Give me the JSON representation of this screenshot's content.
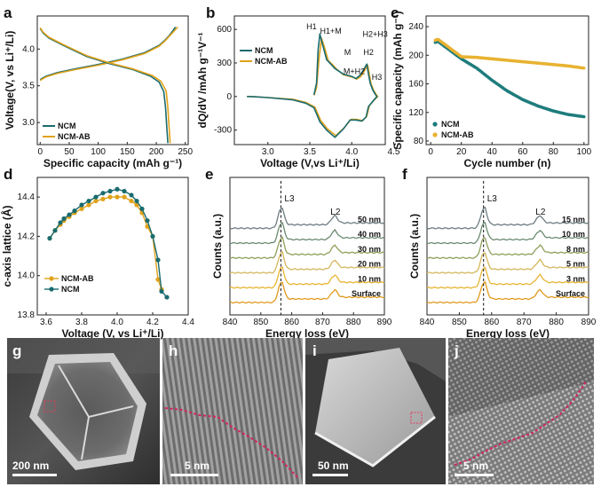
{
  "panels": {
    "g": {
      "letter": "g",
      "scale_label": "200 nm"
    },
    "h": {
      "letter": "h",
      "scale_label": "5 nm"
    },
    "i": {
      "letter": "i",
      "scale_label": "50 nm"
    },
    "j": {
      "letter": "j",
      "scale_label": "5 nm"
    }
  },
  "colors": {
    "ncm": "#1a6b6e",
    "ncm_ab": "#e0a21b",
    "ncm_dot": "#1e7c7c",
    "ncm_ab_dot": "#e8b230",
    "tem_dash": "#d6245a"
  },
  "chart_data": [
    {
      "id": "a",
      "type": "line",
      "letter": "a",
      "xlabel": "Specific capacity (mAh g⁻¹)",
      "ylabel": "Voltage(V, vs Li⁺/Li)",
      "xlim": [
        -5,
        255
      ],
      "ylim": [
        2.7,
        4.45
      ],
      "xticks": [
        0,
        50,
        100,
        150,
        200,
        250
      ],
      "yticks": [
        3.0,
        3.5,
        4.0
      ],
      "legend": [
        "NCM",
        "NCM-AB"
      ],
      "series": [
        {
          "name": "NCM charge",
          "x": [
            0,
            3,
            10,
            30,
            60,
            100,
            140,
            180,
            205,
            215,
            222,
            228,
            233
          ],
          "y": [
            3.58,
            3.6,
            3.63,
            3.68,
            3.73,
            3.79,
            3.86,
            3.95,
            4.05,
            4.12,
            4.18,
            4.24,
            4.3
          ]
        },
        {
          "name": "NCM-AB charge",
          "x": [
            0,
            3,
            10,
            30,
            60,
            100,
            140,
            180,
            205,
            215,
            223,
            230,
            237
          ],
          "y": [
            3.57,
            3.59,
            3.62,
            3.67,
            3.72,
            3.78,
            3.85,
            3.94,
            4.04,
            4.11,
            4.18,
            4.24,
            4.3
          ]
        },
        {
          "name": "NCM discharge",
          "x": [
            0,
            5,
            15,
            40,
            80,
            120,
            160,
            190,
            205,
            213,
            216,
            218,
            220
          ],
          "y": [
            4.28,
            4.22,
            4.15,
            4.05,
            3.9,
            3.8,
            3.72,
            3.63,
            3.55,
            3.42,
            3.2,
            2.95,
            2.72
          ]
        },
        {
          "name": "NCM-AB discharge",
          "x": [
            0,
            5,
            15,
            40,
            80,
            120,
            160,
            193,
            208,
            217,
            220,
            222,
            224
          ],
          "y": [
            4.29,
            4.23,
            4.16,
            4.06,
            3.91,
            3.81,
            3.73,
            3.64,
            3.56,
            3.43,
            3.2,
            2.95,
            2.72
          ]
        }
      ]
    },
    {
      "id": "b",
      "type": "line",
      "letter": "b",
      "xlabel": "Voltage (V,vs Li⁺/Li)",
      "ylabel": "dQ/dV /mAh g⁻¹V⁻¹",
      "xlim": [
        2.6,
        4.4
      ],
      "ylim": [
        -430,
        720
      ],
      "xticks": [
        3.0,
        3.5,
        4.0,
        4.5
      ],
      "yticks": [
        -300,
        0,
        300,
        600
      ],
      "legend": [
        "NCM",
        "NCM-AB"
      ],
      "annotations": [
        "H1",
        "H1+M",
        "M",
        "H2+H3",
        "H2",
        "M+H2",
        "H3"
      ],
      "series": [
        {
          "name": "NCM",
          "x": [
            3.55,
            3.58,
            3.6,
            3.62,
            3.65,
            3.7,
            3.75,
            3.8,
            3.9,
            4.0,
            4.05,
            4.1,
            4.15,
            4.18,
            4.2,
            4.22,
            4.25,
            4.28,
            4.3,
            4.3,
            4.26,
            4.2,
            4.17,
            4.12,
            4.05,
            3.98,
            3.9,
            3.8,
            3.7,
            3.62,
            3.55,
            3.45,
            3.3,
            3.0,
            2.8,
            2.75
          ],
          "y": [
            15,
            120,
            420,
            560,
            470,
            330,
            290,
            250,
            200,
            180,
            160,
            190,
            250,
            290,
            200,
            120,
            60,
            20,
            0,
            0,
            -35,
            -90,
            -185,
            -220,
            -210,
            -210,
            -290,
            -365,
            -300,
            -225,
            -100,
            -60,
            -30,
            -10,
            0,
            0
          ]
        },
        {
          "name": "NCM-AB",
          "x": [
            3.55,
            3.58,
            3.61,
            3.64,
            3.67,
            3.72,
            3.77,
            3.82,
            3.9,
            4.0,
            4.06,
            4.11,
            4.16,
            4.19,
            4.21,
            4.23,
            4.26,
            4.29,
            4.31,
            4.31,
            4.27,
            4.21,
            4.18,
            4.13,
            4.06,
            3.99,
            3.91,
            3.81,
            3.71,
            3.63,
            3.56,
            3.46,
            3.3,
            3.0,
            2.8,
            2.75
          ],
          "y": [
            10,
            80,
            340,
            520,
            450,
            320,
            285,
            245,
            195,
            175,
            155,
            180,
            240,
            280,
            195,
            115,
            55,
            20,
            0,
            0,
            -30,
            -80,
            -175,
            -215,
            -205,
            -205,
            -280,
            -350,
            -290,
            -215,
            -95,
            -55,
            -25,
            -10,
            0,
            0
          ]
        }
      ]
    },
    {
      "id": "c",
      "type": "scatter",
      "letter": "c",
      "xlabel": "Cycle number (n)",
      "ylabel": "Specific capacity (mAh g⁻¹)",
      "xlim": [
        -3,
        103
      ],
      "ylim": [
        75,
        255
      ],
      "xticks": [
        0,
        20,
        40,
        60,
        80,
        100
      ],
      "yticks": [
        80,
        120,
        160,
        200,
        240
      ],
      "legend": [
        "NCM",
        "NCM-AB"
      ],
      "series": [
        {
          "name": "NCM",
          "x": [
            3,
            4,
            5,
            20,
            30,
            40,
            50,
            60,
            70,
            80,
            90,
            100
          ],
          "y": [
            218,
            219,
            219,
            195,
            182,
            165,
            150,
            138,
            129,
            122,
            117,
            114
          ]
        },
        {
          "name": "NCM-AB",
          "x": [
            3,
            4,
            5,
            20,
            30,
            40,
            50,
            60,
            70,
            80,
            90,
            100
          ],
          "y": [
            221,
            222,
            222,
            198,
            197,
            195,
            193,
            191,
            189,
            187,
            185,
            182
          ]
        }
      ]
    },
    {
      "id": "d",
      "type": "line",
      "letter": "d",
      "xlabel": "Voltage (V, vs Li⁺/Li)",
      "ylabel": "c-axis lattice (Å)",
      "xlim": [
        3.55,
        4.4
      ],
      "ylim": [
        13.8,
        14.5
      ],
      "xticks": [
        3.6,
        3.8,
        4.0,
        4.2,
        4.4
      ],
      "yticks": [
        13.8,
        14.0,
        14.2,
        14.4
      ],
      "legend": [
        "NCM-AB",
        "NCM"
      ],
      "series": [
        {
          "name": "NCM-AB",
          "x": [
            3.62,
            3.65,
            3.68,
            3.7,
            3.73,
            3.76,
            3.8,
            3.84,
            3.88,
            3.92,
            3.96,
            4.0,
            4.04,
            4.08,
            4.11,
            4.14,
            4.17,
            4.2,
            4.23,
            4.25
          ],
          "y": [
            14.19,
            14.23,
            14.26,
            14.28,
            14.3,
            14.32,
            14.34,
            14.36,
            14.38,
            14.39,
            14.4,
            14.4,
            14.4,
            14.38,
            14.36,
            14.32,
            14.25,
            14.2,
            13.98,
            13.93
          ]
        },
        {
          "name": "NCM",
          "x": [
            3.62,
            3.65,
            3.68,
            3.7,
            3.73,
            3.76,
            3.8,
            3.84,
            3.88,
            3.92,
            3.96,
            4.0,
            4.04,
            4.08,
            4.11,
            4.14,
            4.17,
            4.2,
            4.23,
            4.25,
            4.28
          ],
          "y": [
            14.19,
            14.23,
            14.27,
            14.29,
            14.31,
            14.33,
            14.36,
            14.38,
            14.4,
            14.42,
            14.43,
            14.44,
            14.43,
            14.41,
            14.38,
            14.34,
            14.28,
            14.2,
            14.08,
            13.92,
            13.89
          ]
        }
      ]
    },
    {
      "id": "e",
      "type": "line",
      "letter": "e",
      "xlabel": "Energy loss (eV)",
      "ylabel": "Counts (a.u.)",
      "xlim": [
        840,
        890
      ],
      "xticks": [
        840,
        850,
        860,
        870,
        880,
        890
      ],
      "peaks": [
        "L3",
        "L2"
      ],
      "l3_position": 856.5,
      "series": [
        {
          "name": "50 nm",
          "color": "#6f7e82"
        },
        {
          "name": "40 nm",
          "color": "#6b8a70"
        },
        {
          "name": "30 nm",
          "color": "#8fa05c"
        },
        {
          "name": "20 nm",
          "color": "#d3b65a"
        },
        {
          "name": "10 nm",
          "color": "#e7b534"
        },
        {
          "name": "Surface",
          "color": "#e09a1d"
        }
      ]
    },
    {
      "id": "f",
      "type": "line",
      "letter": "f",
      "xlabel": "Energy loss (eV)",
      "ylabel": "Counts (a.u.)",
      "xlim": [
        840,
        890
      ],
      "xticks": [
        840,
        850,
        860,
        870,
        880,
        890
      ],
      "peaks": [
        "L3",
        "L2"
      ],
      "l3_position": 857.5,
      "series": [
        {
          "name": "15 nm",
          "color": "#6f7e82"
        },
        {
          "name": "10 nm",
          "color": "#6b8a70"
        },
        {
          "name": "8 nm",
          "color": "#8fa05c"
        },
        {
          "name": "5 nm",
          "color": "#d3b65a"
        },
        {
          "name": "3 nm",
          "color": "#e7b534"
        },
        {
          "name": "Surface",
          "color": "#e09a1d"
        }
      ]
    }
  ]
}
